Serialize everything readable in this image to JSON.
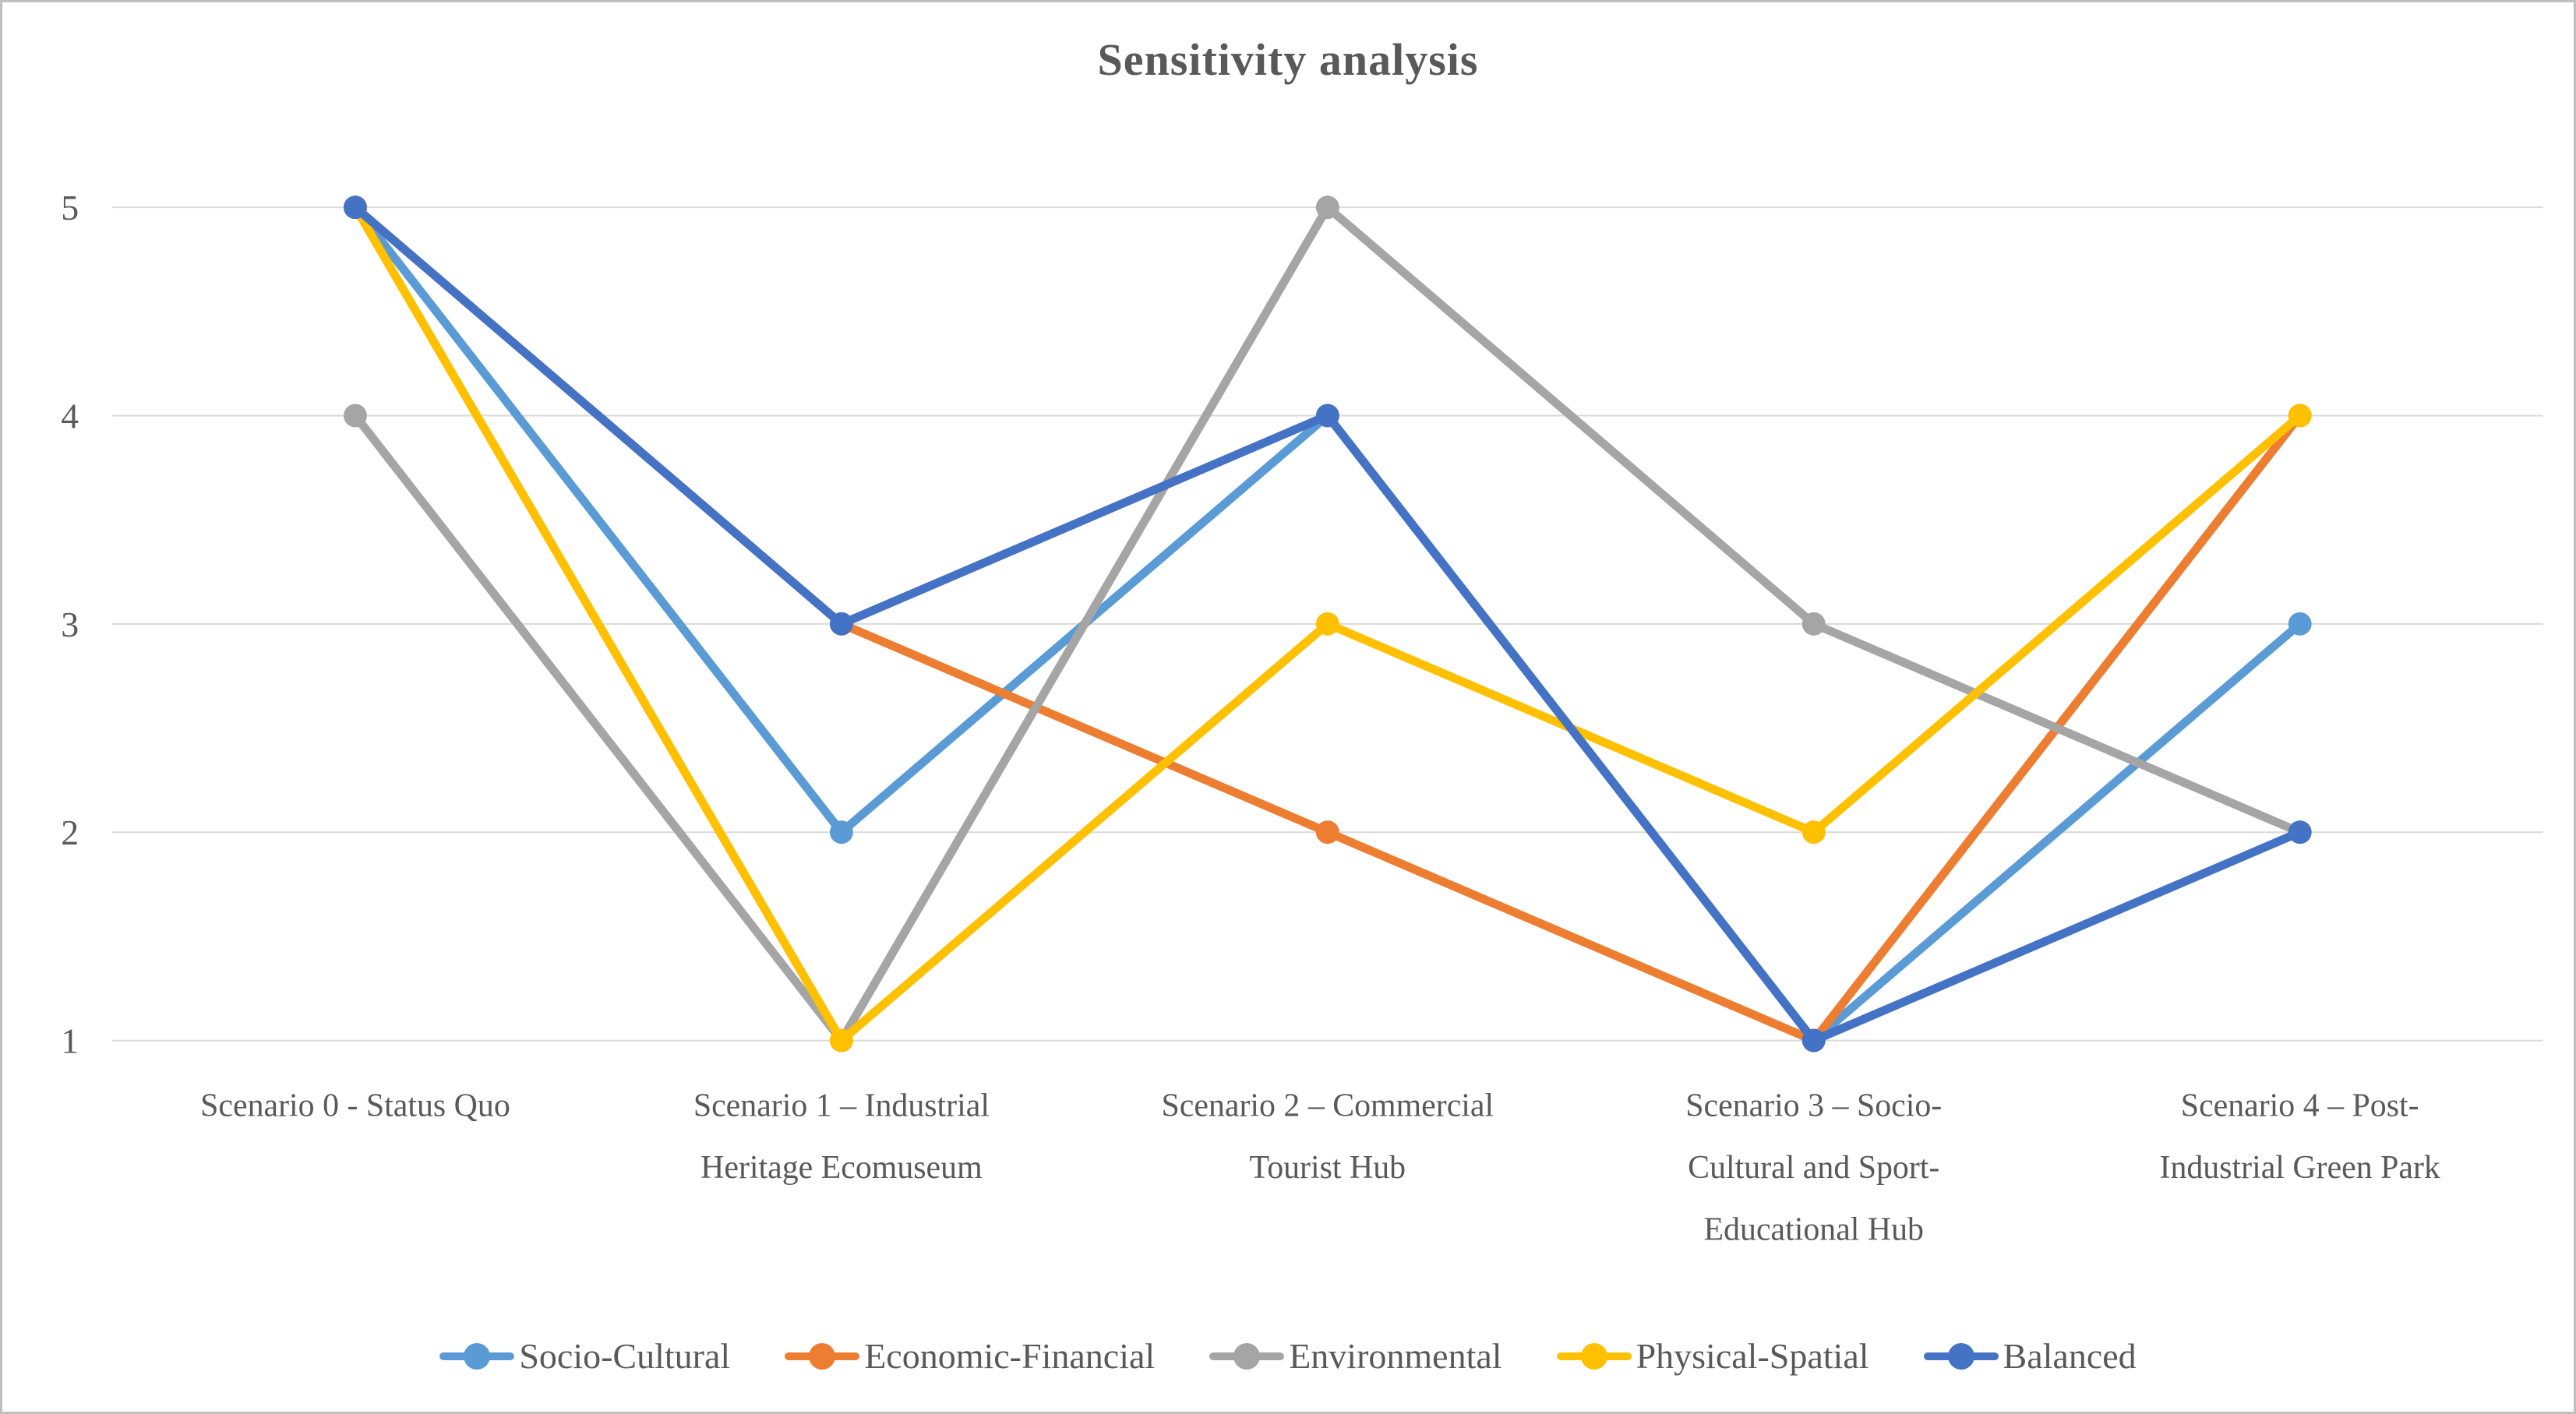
{
  "chart_data": {
    "type": "line",
    "title": "Sensitivity analysis",
    "xlabel": "",
    "ylabel": "",
    "ylim": [
      1,
      5
    ],
    "y_ticks": [
      1,
      2,
      3,
      4,
      5
    ],
    "grid": true,
    "legend_position": "bottom",
    "categories": [
      "Scenario 0 - Status Quo",
      "Scenario 1 – Industrial Heritage Ecomuseum",
      "Scenario 2 – Commercial Tourist Hub",
      "Scenario 3 – Socio-Cultural and Sport-Educational Hub",
      "Scenario 4 – Post-Industrial Green Park"
    ],
    "category_label_lines": [
      [
        "Scenario 0 - Status Quo"
      ],
      [
        "Scenario 1 – Industrial",
        "Heritage Ecomuseum"
      ],
      [
        "Scenario 2 – Commercial",
        "Tourist Hub"
      ],
      [
        "Scenario 3 – Socio-",
        "Cultural and Sport-",
        "Educational Hub"
      ],
      [
        "Scenario 4 – Post-",
        "Industrial Green Park"
      ]
    ],
    "series": [
      {
        "name": "Socio-Cultural",
        "color": "#5B9BD5",
        "values": [
          5,
          2,
          4,
          1,
          3
        ]
      },
      {
        "name": "Economic-Financial",
        "color": "#ED7D31",
        "values": [
          5,
          3,
          2,
          1,
          4
        ]
      },
      {
        "name": "Environmental",
        "color": "#A5A5A5",
        "values": [
          4,
          1,
          5,
          3,
          2
        ]
      },
      {
        "name": "Physical-Spatial",
        "color": "#FFC000",
        "values": [
          5,
          1,
          3,
          2,
          4
        ]
      },
      {
        "name": "Balanced",
        "color": "#4472C4",
        "values": [
          5,
          3,
          4,
          1,
          2
        ]
      }
    ],
    "colors": {
      "text": "#595959",
      "gridline": "#D9D9D9",
      "border": "#BFBFBF",
      "background": "#FFFFFF"
    }
  }
}
